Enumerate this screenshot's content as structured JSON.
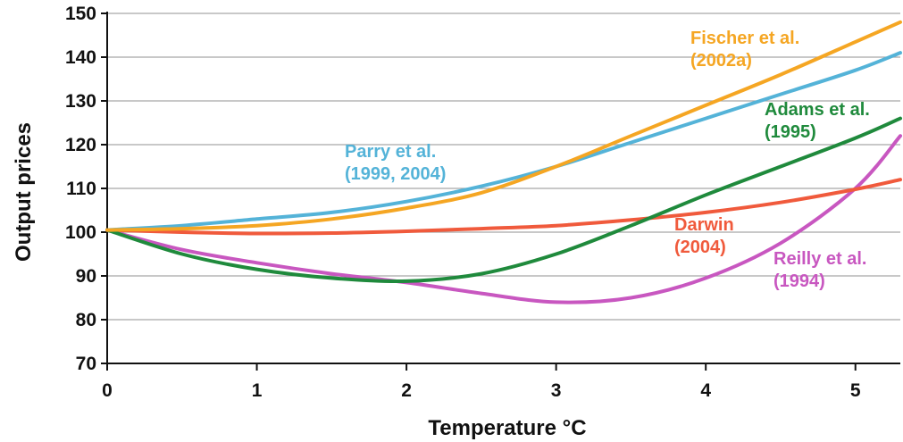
{
  "chart_data": {
    "type": "line",
    "xlabel": "Temperature °C",
    "ylabel": "Output prices",
    "xlim": [
      0,
      5.3
    ],
    "ylim": [
      70,
      150
    ],
    "xticks": [
      "0",
      "1",
      "2",
      "3",
      "4",
      "5"
    ],
    "yticks": [
      "70",
      "80",
      "90",
      "100",
      "110",
      "120",
      "130",
      "140",
      "150"
    ],
    "grid": "horizontal",
    "legend": "inline labels",
    "series": [
      {
        "name": "Fischer et al. (2002a)",
        "label_lines": [
          "Fischer et al.",
          "(2002a)"
        ],
        "color": "#f5a623",
        "x": [
          0,
          0.5,
          1,
          1.5,
          2,
          2.5,
          3,
          3.5,
          4,
          4.5,
          5,
          5.3
        ],
        "y": [
          100.5,
          100.8,
          101.5,
          103,
          105.5,
          109,
          115,
          122,
          129,
          136,
          143.5,
          148
        ]
      },
      {
        "name": "Parry et al. (1999, 2004)",
        "label_lines": [
          "Parry et al.",
          "(1999, 2004)"
        ],
        "color": "#54b3d8",
        "x": [
          0,
          0.5,
          1,
          1.5,
          2,
          2.5,
          3,
          3.5,
          4,
          4.5,
          5,
          5.3
        ],
        "y": [
          100.5,
          101.5,
          103,
          104.5,
          107,
          110.5,
          115,
          120.5,
          126,
          131.5,
          137,
          141
        ]
      },
      {
        "name": "Adams et al. (1995)",
        "label_lines": [
          "Adams et al.",
          "(1995)"
        ],
        "color": "#1f8a3c",
        "x": [
          0,
          0.5,
          1,
          1.5,
          2,
          2.5,
          3,
          3.5,
          4,
          4.5,
          5,
          5.3
        ],
        "y": [
          100.5,
          95,
          91.5,
          89.5,
          88.8,
          90.5,
          95,
          101.5,
          108.5,
          115,
          121.5,
          126
        ]
      },
      {
        "name": "Darwin (2004)",
        "label_lines": [
          "Darwin",
          "(2004)"
        ],
        "color": "#f05a3c",
        "x": [
          0,
          0.5,
          1,
          1.5,
          2,
          2.5,
          3,
          3.5,
          4,
          4.5,
          5,
          5.3
        ],
        "y": [
          100.5,
          100,
          99.7,
          99.8,
          100.2,
          100.8,
          101.5,
          102.8,
          104.5,
          106.8,
          109.8,
          112
        ]
      },
      {
        "name": "Reilly et al. (1994)",
        "label_lines": [
          "Reilly et al.",
          "(1994)"
        ],
        "color": "#c857c0",
        "x": [
          0,
          0.5,
          1,
          1.5,
          2,
          2.5,
          3,
          3.5,
          4,
          4.5,
          5,
          5.3
        ],
        "y": [
          100.5,
          96,
          93,
          90.5,
          88.5,
          86,
          84,
          85,
          89.5,
          97.5,
          110,
          122
        ]
      }
    ]
  }
}
